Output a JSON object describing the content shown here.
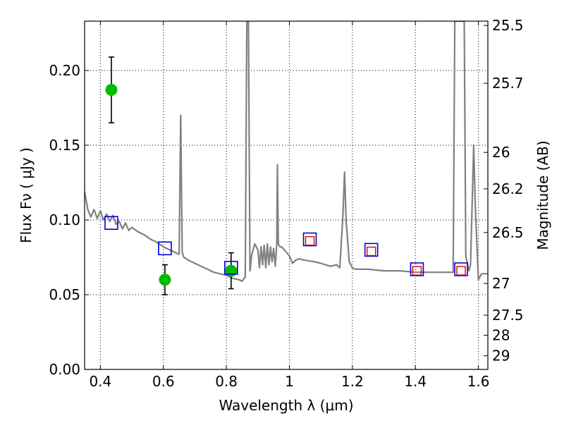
{
  "chart_data": {
    "type": "scatter",
    "title": "",
    "xlabel": "Wavelength  λ (μm)",
    "ylabel": "Flux  Fν  ( μJy )",
    "y2label": "Magnitude (AB)",
    "xlim": [
      0.35,
      1.63
    ],
    "ylim": [
      0.0,
      0.233
    ],
    "grid": true,
    "xticks": [
      0.4,
      0.6,
      0.8,
      1.0,
      1.2,
      1.4,
      1.6
    ],
    "xtick_labels": [
      "0.4",
      "0.6",
      "0.8",
      "1",
      "1.2",
      "1.4",
      "1.6"
    ],
    "yticks": [
      0.0,
      0.05,
      0.1,
      0.15,
      0.2
    ],
    "ytick_labels": [
      "0.00",
      "0.05",
      "0.10",
      "0.15",
      "0.20"
    ],
    "y2ticks": [
      {
        "label": "25.5",
        "flux": 0.2301
      },
      {
        "label": "25.7",
        "flux": 0.1914
      },
      {
        "label": "26",
        "flux": 0.1452
      },
      {
        "label": "26.2",
        "flux": 0.1208
      },
      {
        "label": "26.5",
        "flux": 0.0916
      },
      {
        "label": "27",
        "flux": 0.0575
      },
      {
        "label": "27.5",
        "flux": 0.0363
      },
      {
        "label": "28",
        "flux": 0.0229
      },
      {
        "label": "29",
        "flux": 0.0091
      }
    ],
    "series": [
      {
        "kind": "line",
        "color": "#808080",
        "x": [
          0.35,
          0.36,
          0.37,
          0.38,
          0.39,
          0.4,
          0.41,
          0.42,
          0.43,
          0.44,
          0.45,
          0.46,
          0.47,
          0.48,
          0.49,
          0.5,
          0.52,
          0.54,
          0.56,
          0.58,
          0.6,
          0.62,
          0.64,
          0.65,
          0.655,
          0.66,
          0.665,
          0.68,
          0.7,
          0.72,
          0.74,
          0.76,
          0.78,
          0.8,
          0.82,
          0.84,
          0.85,
          0.86,
          0.865,
          0.87,
          0.875,
          0.88,
          0.89,
          0.9,
          0.905,
          0.91,
          0.915,
          0.92,
          0.925,
          0.93,
          0.935,
          0.94,
          0.945,
          0.95,
          0.955,
          0.96,
          0.962,
          0.965,
          0.97,
          0.975,
          0.98,
          1.0,
          1.01,
          1.02,
          1.03,
          1.05,
          1.08,
          1.1,
          1.13,
          1.15,
          1.16,
          1.17,
          1.175,
          1.18,
          1.19,
          1.2,
          1.21,
          1.22,
          1.25,
          1.3,
          1.35,
          1.4,
          1.45,
          1.5,
          1.52,
          1.525,
          1.53,
          1.55,
          1.555,
          1.56,
          1.57,
          1.575,
          1.58,
          1.585,
          1.59,
          1.6,
          1.61,
          1.62,
          1.63
        ],
        "y": [
          0.119,
          0.107,
          0.102,
          0.107,
          0.101,
          0.106,
          0.1,
          0.104,
          0.099,
          0.103,
          0.097,
          0.099,
          0.094,
          0.098,
          0.093,
          0.095,
          0.092,
          0.09,
          0.087,
          0.085,
          0.082,
          0.08,
          0.078,
          0.077,
          0.17,
          0.078,
          0.075,
          0.073,
          0.071,
          0.069,
          0.067,
          0.065,
          0.064,
          0.063,
          0.061,
          0.06,
          0.059,
          0.062,
          0.233,
          0.233,
          0.066,
          0.076,
          0.084,
          0.08,
          0.068,
          0.082,
          0.07,
          0.083,
          0.068,
          0.084,
          0.07,
          0.082,
          0.072,
          0.081,
          0.069,
          0.084,
          0.137,
          0.084,
          0.082,
          0.082,
          0.081,
          0.076,
          0.071,
          0.073,
          0.074,
          0.073,
          0.072,
          0.071,
          0.069,
          0.07,
          0.068,
          0.103,
          0.132,
          0.1,
          0.072,
          0.068,
          0.067,
          0.067,
          0.067,
          0.066,
          0.066,
          0.065,
          0.065,
          0.065,
          0.065,
          0.233,
          0.233,
          0.233,
          0.233,
          0.076,
          0.066,
          0.07,
          0.11,
          0.15,
          0.11,
          0.06,
          0.064,
          0.064,
          0.064
        ]
      },
      {
        "kind": "points-errorbar",
        "color": "#00bb00",
        "marker": "circle",
        "x": [
          0.435,
          0.605,
          0.815
        ],
        "y": [
          0.187,
          0.06,
          0.066
        ],
        "yerr": [
          0.022,
          0.01,
          0.012
        ]
      },
      {
        "kind": "points",
        "color": "#0000dd",
        "marker": "open-square-large",
        "x": [
          0.435,
          0.605,
          0.815,
          1.065,
          1.26,
          1.405,
          1.545
        ],
        "y": [
          0.098,
          0.081,
          0.068,
          0.087,
          0.08,
          0.067,
          0.067
        ]
      },
      {
        "kind": "points",
        "color": "#dd0000",
        "marker": "open-square-small",
        "x": [
          1.065,
          1.26,
          1.405,
          1.545
        ],
        "y": [
          0.086,
          0.079,
          0.066,
          0.066
        ]
      }
    ]
  }
}
